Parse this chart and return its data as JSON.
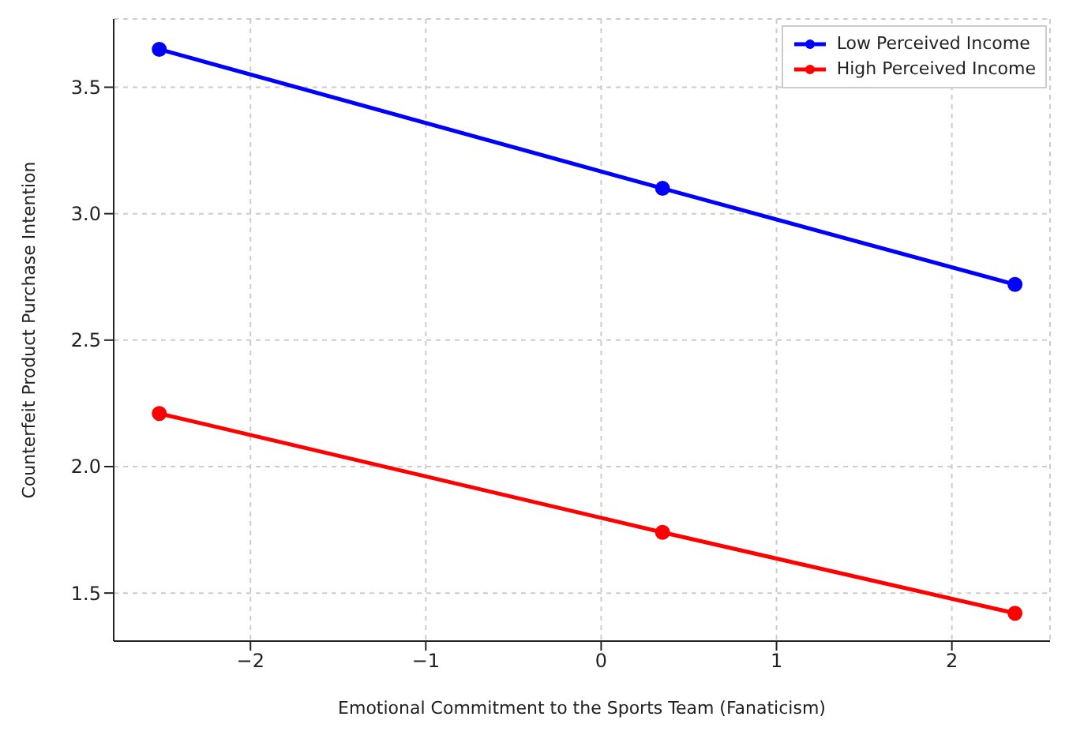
{
  "chart_data": {
    "type": "line",
    "xlabel": "Emotional Commitment to the Sports Team (Fanaticism)",
    "ylabel": "Counterfeit Product Purchase Intention",
    "x": [
      -2.52,
      0.35,
      2.36
    ],
    "series": [
      {
        "name": "Low Perceived Income",
        "color": "#0000ff",
        "values": [
          3.65,
          3.1,
          2.72
        ]
      },
      {
        "name": "High Perceived Income",
        "color": "#ff0000",
        "values": [
          2.21,
          1.74,
          1.42
        ]
      }
    ],
    "xlim": [
      -2.78,
      2.56
    ],
    "xticks": [
      {
        "value": -2,
        "label": "−2"
      },
      {
        "value": -1,
        "label": "−1"
      },
      0,
      1,
      2
    ],
    "ylim": [
      1.31,
      3.77
    ],
    "yticks": [
      {
        "value": 1.5,
        "label": "1.5"
      },
      {
        "value": 2,
        "label": "2.0"
      },
      {
        "value": 2.5,
        "label": "2.5"
      },
      {
        "value": 3,
        "label": "3.0"
      },
      {
        "value": 3.5,
        "label": "3.5"
      }
    ],
    "grid": true,
    "legend": "top right",
    "marker": "circle",
    "line_style": "solid"
  }
}
